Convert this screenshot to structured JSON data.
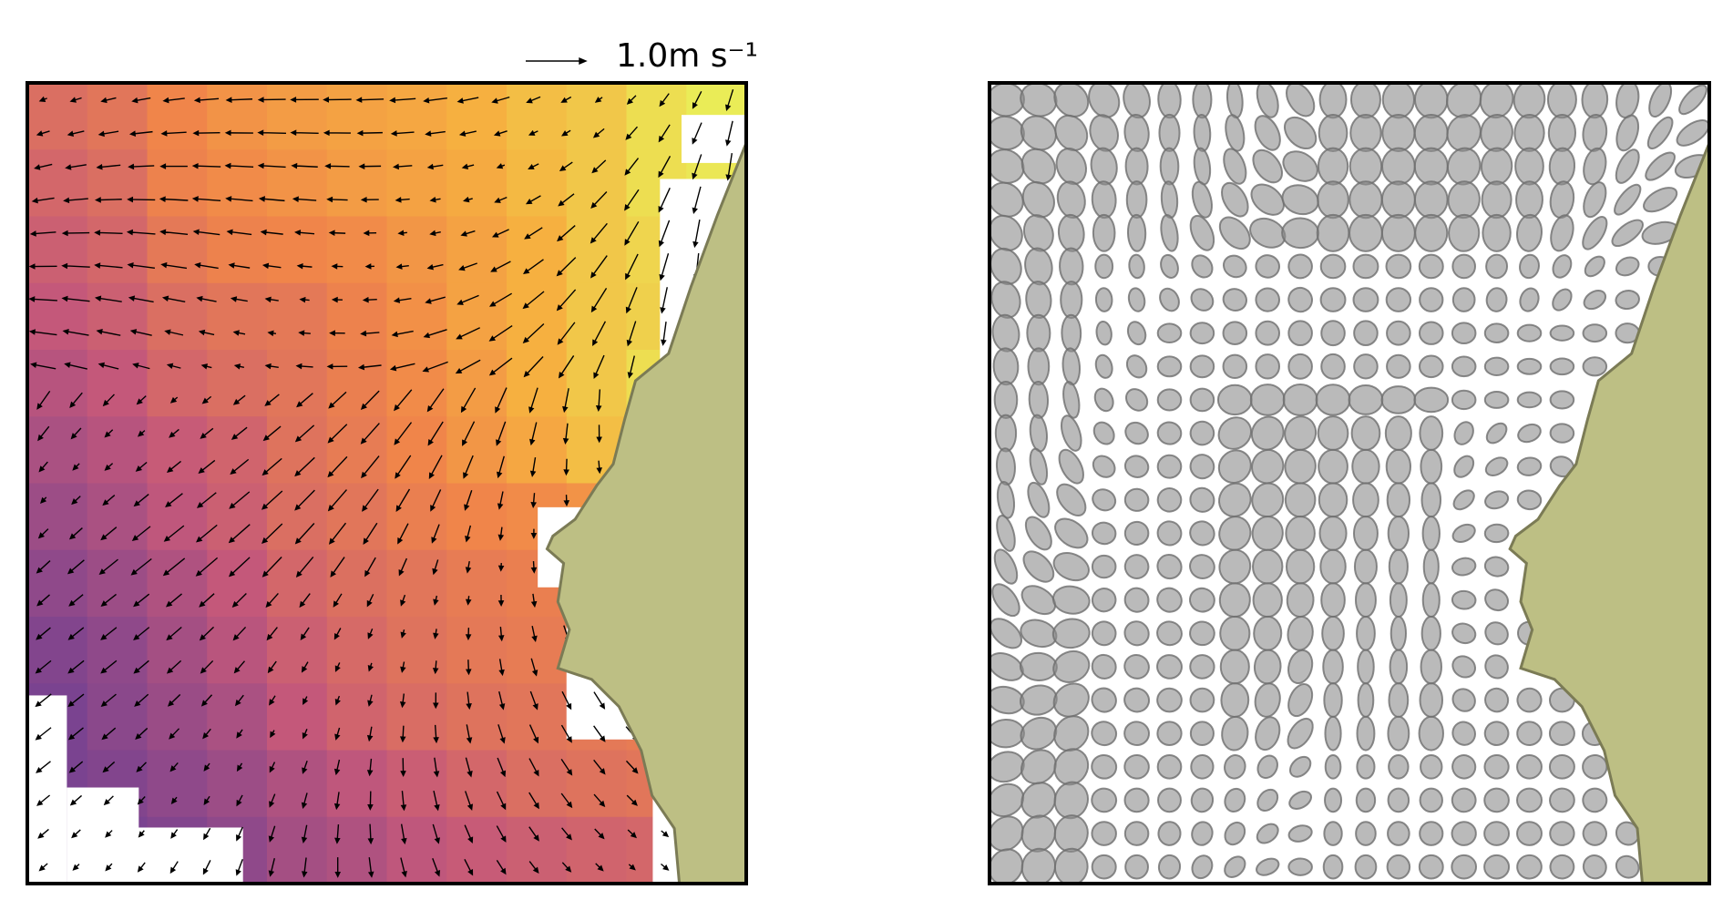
{
  "chart_data": [
    {
      "type": "heatmap",
      "colormap": "plasma",
      "clim": [
        0,
        1
      ],
      "quiver_key": {
        "value": 1.0,
        "label": "1.0m s⁻¹"
      },
      "values": [
        [
          0.55,
          0.6,
          0.7,
          0.75,
          0.78,
          0.8,
          0.82,
          0.85,
          0.88,
          0.9,
          0.95,
          0.98
        ],
        [
          0.5,
          0.55,
          0.68,
          0.72,
          0.75,
          0.78,
          0.8,
          0.83,
          0.87,
          0.9,
          0.95,
          0.97
        ],
        [
          0.45,
          0.5,
          0.62,
          0.68,
          0.7,
          0.72,
          0.76,
          0.8,
          0.85,
          0.9,
          0.93,
          0.95
        ],
        [
          0.4,
          0.45,
          0.55,
          0.6,
          0.62,
          0.68,
          0.74,
          0.8,
          0.85,
          0.9,
          0.92,
          0.95
        ],
        [
          0.35,
          0.4,
          0.5,
          0.55,
          0.6,
          0.66,
          0.72,
          0.78,
          0.85,
          0.9,
          0.95,
          0.95
        ],
        [
          0.3,
          0.35,
          0.42,
          0.48,
          0.58,
          0.64,
          0.7,
          0.76,
          0.82,
          0.88,
          0.9,
          0.9
        ],
        [
          0.25,
          0.3,
          0.38,
          0.45,
          0.55,
          0.6,
          0.66,
          0.7,
          0.72,
          0.75,
          0.8,
          0.85
        ],
        [
          0.2,
          0.25,
          0.32,
          0.4,
          0.5,
          0.56,
          0.6,
          0.64,
          0.66,
          0.68,
          0.7,
          0.72
        ],
        [
          0.15,
          0.2,
          0.28,
          0.36,
          0.45,
          0.52,
          0.58,
          0.62,
          0.64,
          0.66,
          0.68,
          0.7
        ],
        [
          0.12,
          0.18,
          0.24,
          0.3,
          0.4,
          0.48,
          0.54,
          0.58,
          0.6,
          0.62,
          0.64,
          0.66
        ],
        [
          0.12,
          0.15,
          0.2,
          0.25,
          0.32,
          0.38,
          0.44,
          0.5,
          0.55,
          0.58,
          0.6,
          0.62
        ],
        [
          0.15,
          0.12,
          0.15,
          0.2,
          0.28,
          0.32,
          0.38,
          0.42,
          0.45,
          0.48,
          0.5,
          0.5
        ]
      ]
    },
    {
      "type": "ellipses"
    }
  ]
}
